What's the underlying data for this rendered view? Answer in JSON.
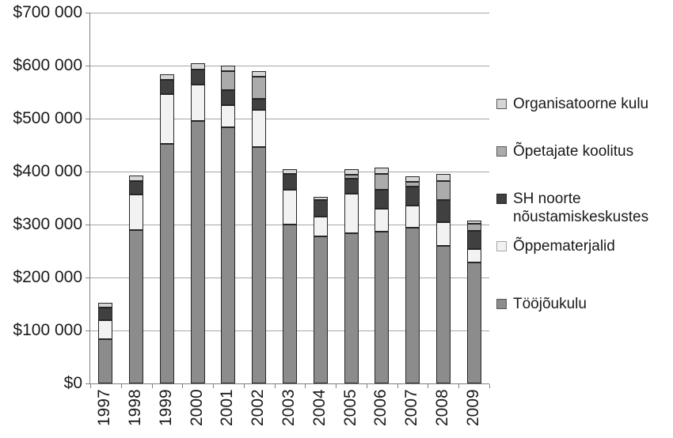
{
  "chart_data": {
    "type": "bar",
    "stacked": true,
    "title": "",
    "xlabel": "",
    "ylabel": "",
    "categories": [
      "1997",
      "1998",
      "1999",
      "2000",
      "2001",
      "2002",
      "2003",
      "2004",
      "2005",
      "2006",
      "2007",
      "2008",
      "2009"
    ],
    "series": [
      {
        "name": "Tööjõukulu",
        "color": "#8c8c8c",
        "values": [
          84000,
          290000,
          452000,
          496000,
          484000,
          446000,
          300000,
          278000,
          283000,
          286000,
          294000,
          260000,
          228000
        ]
      },
      {
        "name": "Õppematerjalid",
        "color": "#f2f2f2",
        "values": [
          36000,
          66000,
          94000,
          68000,
          42000,
          71000,
          66000,
          37000,
          75000,
          44000,
          42000,
          45000,
          25000
        ]
      },
      {
        "name": "SH noorte nõustamiskeskustes",
        "color": "#404040",
        "values": [
          24000,
          26000,
          27000,
          29000,
          27000,
          20000,
          30000,
          32000,
          28000,
          36000,
          35000,
          42000,
          35000
        ]
      },
      {
        "name": "Õpetajate koolitus",
        "color": "#ababab",
        "values": [
          0,
          0,
          0,
          0,
          37000,
          42000,
          0,
          0,
          8000,
          29000,
          10000,
          35000,
          13000
        ]
      },
      {
        "name": "Organisatoorne kulu",
        "color": "#d6d6d6",
        "values": [
          8000,
          11000,
          10000,
          11000,
          10000,
          11000,
          8000,
          5000,
          11000,
          12000,
          10000,
          13000,
          6000
        ]
      }
    ],
    "ylim": [
      0,
      700000
    ],
    "ytick_step": 100000,
    "ytick_labels": [
      "$0",
      "$100 000",
      "$200 000",
      "$300 000",
      "$400 000",
      "$500 000",
      "$600 000",
      "$700 000"
    ],
    "grid": true,
    "legend_position": "right"
  },
  "legend": {
    "items": [
      {
        "label": "Organisatoorne kulu",
        "fill": "#d6d6d6",
        "border": "#595959"
      },
      {
        "label": "Õpetajate koolitus",
        "fill": "#ababab",
        "border": "#595959"
      },
      {
        "label": "SH noorte nõustamiskeskustes",
        "fill": "#404040",
        "border": "#262626"
      },
      {
        "label": "Õppematerjalid",
        "fill": "#f2f2f2",
        "border": "#a6a6a6"
      },
      {
        "label": "Tööjõukulu",
        "fill": "#8c8c8c",
        "border": "#595959"
      }
    ]
  },
  "colors": {
    "gridline": "#a6a6a6",
    "axis": "#808080",
    "bar_border": "#262626",
    "text": "#1a1a1a"
  }
}
